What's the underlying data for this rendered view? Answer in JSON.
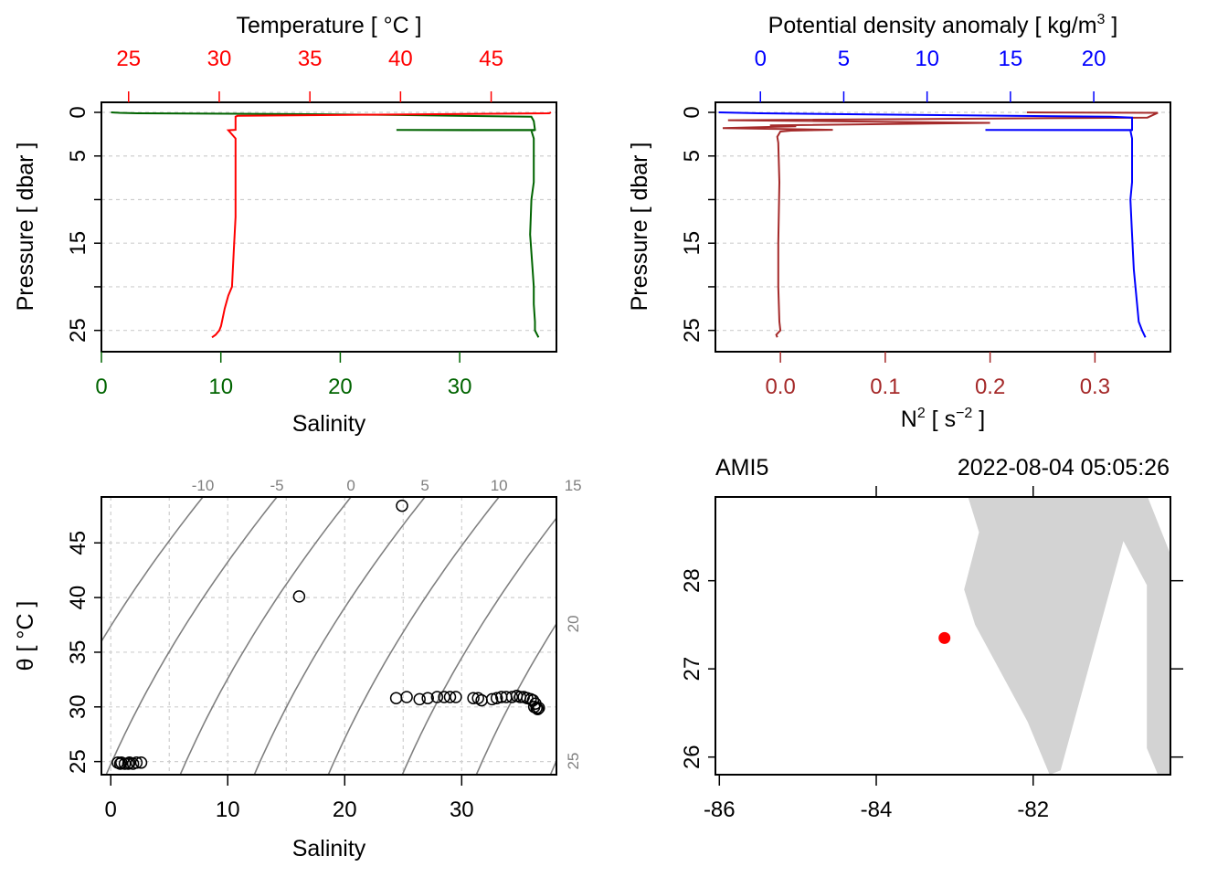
{
  "colors": {
    "temperature": "#ff0000",
    "salinity": "#006400",
    "density": "#0000ff",
    "n2": "#a52a2a",
    "coast": "#d3d3d3",
    "station": "#ff0000",
    "isopycnal": "#7f7f7f"
  },
  "chart_data": [
    {
      "name": "Temperature/Salinity profile",
      "type": "line",
      "title": "Temperature [ °C ]",
      "xlabel": "Salinity",
      "ylabel": "Pressure [ dbar ]",
      "top_axis": {
        "label": "Temperature [ °C ]",
        "range": [
          23.5,
          48.6
        ],
        "ticks": [
          "25",
          "30",
          "35",
          "40",
          "45"
        ],
        "tick_values": [
          25,
          30,
          35,
          40,
          45
        ]
      },
      "bottom_axis": {
        "label": "Salinity",
        "range": [
          0,
          38.1
        ],
        "ticks": [
          "0",
          "10",
          "20",
          "30"
        ],
        "tick_values": [
          0,
          10,
          20,
          30
        ]
      },
      "left_axis": {
        "label": "Pressure [ dbar ]",
        "range": [
          0,
          26.5
        ],
        "inverted": true,
        "ticks": [
          "0",
          "5",
          "15",
          "25"
        ],
        "tick_values": [
          0,
          5,
          15,
          25
        ],
        "grid_values": [
          0,
          5,
          10,
          15,
          20,
          25
        ]
      },
      "series": [
        {
          "name": "Temperature",
          "axis": "top",
          "p": [
            0.0,
            0.1,
            0.4,
            0.5,
            2.0,
            2.05,
            3.0,
            8.0,
            12.0,
            16.0,
            20.0,
            21.0,
            22.5,
            23.5,
            24.5,
            25.0,
            25.5,
            25.8
          ],
          "values": [
            48.3,
            48.2,
            31.0,
            30.9,
            30.9,
            30.5,
            30.9,
            30.9,
            30.9,
            30.8,
            30.7,
            30.5,
            30.3,
            30.2,
            30.1,
            30.0,
            29.8,
            29.6
          ]
        },
        {
          "name": "Salinity",
          "axis": "bottom",
          "p": [
            0.0,
            0.05,
            0.1,
            0.2,
            0.3,
            0.5,
            1.0,
            2.0,
            2.02,
            2.05,
            2.1,
            3.0,
            8.0,
            10.0,
            14.0,
            18.0,
            20.0,
            22.0,
            24.0,
            25.0,
            25.8
          ],
          "values": [
            0.8,
            1.5,
            3.0,
            16.0,
            25.0,
            36.0,
            36.2,
            36.3,
            24.7,
            36.3,
            36.0,
            36.2,
            36.2,
            36.0,
            35.9,
            36.1,
            36.2,
            36.2,
            36.3,
            36.3,
            36.6
          ]
        }
      ]
    },
    {
      "name": "Density/N2 profile",
      "type": "line",
      "title": "Potential density anomaly [ kg/m3 ]",
      "xlabel": "N2 [ s-2 ]",
      "ylabel": "Pressure [ dbar ]",
      "top_axis": {
        "label_main": "Potential density anomaly [ kg/m",
        "label_sup": "3",
        "label_end": " ]",
        "range": [
          -2.7,
          24.6
        ],
        "ticks": [
          "0",
          "5",
          "10",
          "15",
          "20"
        ],
        "tick_values": [
          0,
          5,
          10,
          15,
          20
        ]
      },
      "bottom_axis": {
        "label_main": "N",
        "label_sup": "2",
        "label_mid": " [ s",
        "label_sup2": "−2",
        "label_end": " ]",
        "range": [
          -0.062,
          0.372
        ],
        "ticks": [
          "0.0",
          "0.1",
          "0.2",
          "0.3"
        ],
        "tick_values": [
          0.0,
          0.1,
          0.2,
          0.3
        ]
      },
      "left_axis": {
        "label": "Pressure [ dbar ]",
        "range": [
          0,
          26.5
        ],
        "inverted": true,
        "ticks": [
          "0",
          "5",
          "15",
          "25"
        ],
        "tick_values": [
          0,
          5,
          15,
          25
        ],
        "grid_values": [
          0,
          5,
          10,
          15,
          20,
          25
        ]
      },
      "series": [
        {
          "name": "Potential density anomaly",
          "axis": "top",
          "p": [
            0.0,
            0.1,
            0.3,
            0.5,
            0.6,
            2.0,
            2.02,
            2.05,
            2.1,
            3.0,
            8.0,
            10.0,
            14.0,
            18.0,
            20.0,
            22.0,
            24.0,
            25.0,
            25.8
          ],
          "values": [
            -2.5,
            0.0,
            10.0,
            21.0,
            22.3,
            22.3,
            13.5,
            22.3,
            22.2,
            22.3,
            22.3,
            22.2,
            22.3,
            22.4,
            22.5,
            22.6,
            22.7,
            22.9,
            23.1
          ]
        },
        {
          "name": "N2",
          "axis": "bottom",
          "p": [
            0.0,
            0.05,
            0.6,
            0.9,
            1.2,
            1.5,
            1.6,
            1.8,
            2.0,
            2.1,
            2.2,
            2.8,
            3.5,
            8.0,
            15.0,
            20.0,
            24.0,
            25.0,
            25.5,
            25.8
          ],
          "values": [
            0.235,
            0.36,
            0.35,
            -0.05,
            0.2,
            -0.01,
            0.015,
            -0.055,
            0.05,
            0.01,
            0.0,
            -0.003,
            -0.002,
            -0.001,
            -0.002,
            -0.002,
            -0.001,
            0.0,
            -0.004,
            -0.003
          ]
        }
      ]
    },
    {
      "name": "TS diagram",
      "type": "scatter",
      "xlabel": "Salinity",
      "ylabel": "θ [ °C ]",
      "x_range": [
        -0.8,
        38.1
      ],
      "y_range": [
        23.8,
        49.2
      ],
      "x_ticks": [
        "0",
        "10",
        "20",
        "30"
      ],
      "x_tick_values": [
        0,
        10,
        20,
        30
      ],
      "y_ticks": [
        "25",
        "30",
        "35",
        "40",
        "45"
      ],
      "y_tick_values": [
        25,
        30,
        35,
        40,
        45
      ],
      "isopycnal_labels_top": [
        "-10",
        "-5",
        "0",
        "5",
        "10",
        "15"
      ],
      "isopycnal_values_top": [
        -10,
        -5,
        0,
        5,
        10,
        15
      ],
      "isopycnal_labels_right": [
        "20",
        "25"
      ],
      "isopycnal_values_right": [
        20,
        25
      ],
      "isopycnal_values_extra": [
        30
      ],
      "x": [
        24.9,
        16.1,
        24.4,
        25.3,
        26.4,
        27.1,
        27.9,
        28.5,
        29.0,
        29.5,
        31.0,
        31.4,
        31.7,
        32.6,
        33.0,
        33.4,
        33.8,
        34.3,
        34.7,
        35.0,
        35.3,
        35.6,
        35.9,
        36.1,
        36.3,
        36.2,
        36.4,
        36.5,
        36.6,
        0.6,
        0.9,
        1.2,
        1.5,
        1.9,
        2.2,
        2.6,
        0.8,
        1.6
      ],
      "y": [
        48.4,
        40.1,
        30.8,
        30.9,
        30.7,
        30.8,
        30.9,
        30.9,
        30.9,
        30.9,
        30.8,
        30.8,
        30.6,
        30.7,
        30.8,
        30.9,
        30.9,
        30.9,
        31.0,
        30.9,
        30.9,
        30.8,
        30.7,
        30.6,
        30.3,
        30.0,
        29.9,
        29.8,
        29.9,
        24.9,
        24.9,
        24.8,
        24.8,
        24.8,
        24.9,
        24.9,
        24.8,
        24.9
      ]
    },
    {
      "name": "Station map",
      "type": "map",
      "station_label": "AMI5",
      "timestamp": "2022-08-04 05:05:26",
      "lon_range": [
        -86.05,
        -80.25
      ],
      "lat_range": [
        25.8,
        28.95
      ],
      "x_ticks": [
        "-86",
        "-84",
        "-82"
      ],
      "x_tick_values": [
        -86,
        -84,
        -82
      ],
      "top_tick_values": [
        -84,
        -82
      ],
      "y_ticks": [
        "26",
        "27",
        "28"
      ],
      "y_tick_values": [
        26,
        27,
        28
      ],
      "station": {
        "lon": -83.13,
        "lat": 27.35
      },
      "coast_lon": [
        -82.83,
        -80.54,
        -80.25,
        -80.25,
        -80.41,
        -80.55,
        -80.55,
        -80.85,
        -81.65,
        -81.79,
        -82.07,
        -82.74,
        -82.88,
        -82.69
      ],
      "coast_lat": [
        28.95,
        28.95,
        28.3,
        25.8,
        25.8,
        26.1,
        27.95,
        28.45,
        25.85,
        25.8,
        26.4,
        27.5,
        27.9,
        28.55
      ]
    }
  ]
}
